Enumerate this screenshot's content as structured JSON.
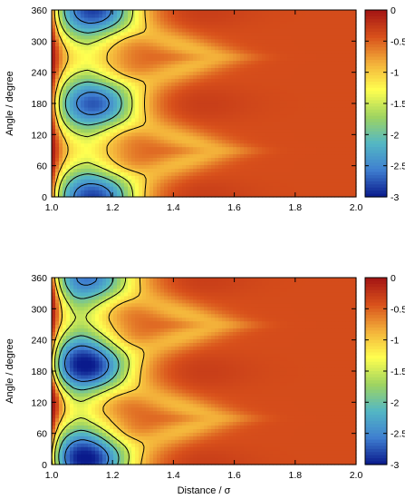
{
  "chart_data": [
    {
      "type": "heatmap",
      "panel": "top",
      "xlabel": "",
      "ylabel": "Angle / degree",
      "xlim": [
        1.0,
        2.0
      ],
      "ylim": [
        0,
        360
      ],
      "x_ticks": [
        "1.0",
        "1.2",
        "1.4",
        "1.6",
        "1.8",
        "2.0"
      ],
      "y_ticks": [
        "0",
        "60",
        "120",
        "180",
        "240",
        "300",
        "360"
      ],
      "colorbar": {
        "range": [
          -3,
          0
        ],
        "ticks": [
          "0",
          "-0.5",
          "-1",
          "-1.5",
          "-2",
          "-2.5",
          "-3"
        ],
        "colormap": [
          "#0a1a8c",
          "#3f7fd0",
          "#53b7c4",
          "#9fd460",
          "#ffff50",
          "#f3b03a",
          "#d8501b",
          "#a31414"
        ]
      },
      "contour_levels": [
        -2.5,
        -2.0,
        -1.5,
        -1.0
      ],
      "wells": [
        {
          "x": 1.12,
          "y": 0,
          "depth": -2.7
        },
        {
          "x": 1.12,
          "y": 180,
          "depth": -2.6
        },
        {
          "x": 1.12,
          "y": 360,
          "depth": -2.7
        }
      ],
      "cap_regions": [],
      "background": -0.4
    },
    {
      "type": "heatmap",
      "panel": "bottom",
      "xlabel": "Distance / σ",
      "ylabel": "Angle / degree",
      "xlim": [
        1.0,
        2.0
      ],
      "ylim": [
        0,
        360
      ],
      "x_ticks": [
        "1.0",
        "1.2",
        "1.4",
        "1.6",
        "1.8",
        "2.0"
      ],
      "y_ticks": [
        "0",
        "60",
        "120",
        "180",
        "240",
        "300",
        "360"
      ],
      "colorbar": {
        "range": [
          -3,
          0
        ],
        "ticks": [
          "0",
          "-0.5",
          "-1",
          "-1.5",
          "-2",
          "-2.5",
          "-3"
        ],
        "colormap": [
          "#0a1a8c",
          "#3f7fd0",
          "#53b7c4",
          "#9fd460",
          "#ffff50",
          "#f3b03a",
          "#d8501b",
          "#a31414"
        ]
      },
      "contour_levels": [
        -2.5,
        -2.0,
        -1.5,
        -1.0
      ],
      "wells": [
        {
          "x": 1.1,
          "y": 15,
          "depth": -3.0
        },
        {
          "x": 1.1,
          "y": 195,
          "depth": -3.0
        },
        {
          "x": 1.1,
          "y": 360,
          "depth": -2.5
        }
      ],
      "cap_regions": [
        {
          "y_from": 100,
          "y_to": 160
        },
        {
          "y_from": 280,
          "y_to": 360
        }
      ],
      "background": -0.4
    }
  ]
}
